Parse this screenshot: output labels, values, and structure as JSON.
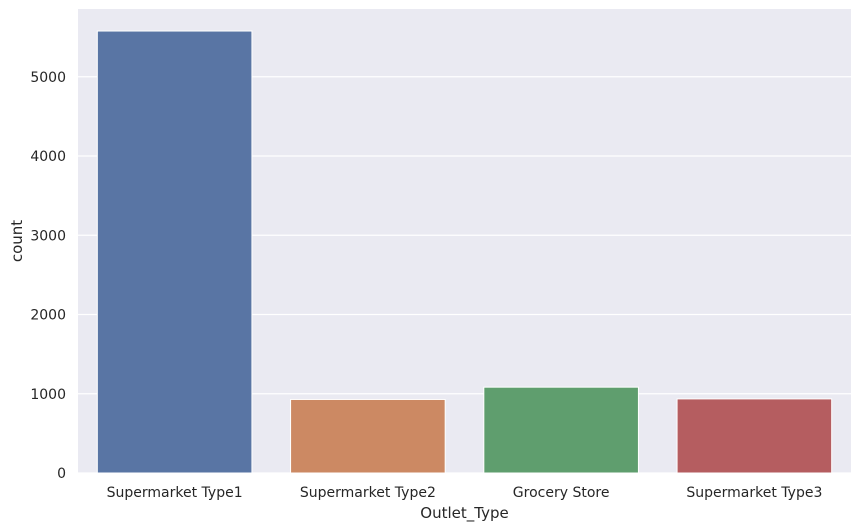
{
  "chart_data": {
    "type": "bar",
    "categories": [
      "Supermarket Type1",
      "Supermarket Type2",
      "Grocery Store",
      "Supermarket Type3"
    ],
    "values": [
      5577,
      928,
      1083,
      935
    ],
    "xlabel": "Outlet_Type",
    "ylabel": "count",
    "ylim": [
      0,
      5855
    ],
    "yticks": [
      0,
      1000,
      2000,
      3000,
      4000,
      5000
    ],
    "grid": true,
    "colors": [
      "#5975a4",
      "#cc8963",
      "#5f9e6e",
      "#b55d60"
    ],
    "background": "#eaeaf2"
  }
}
